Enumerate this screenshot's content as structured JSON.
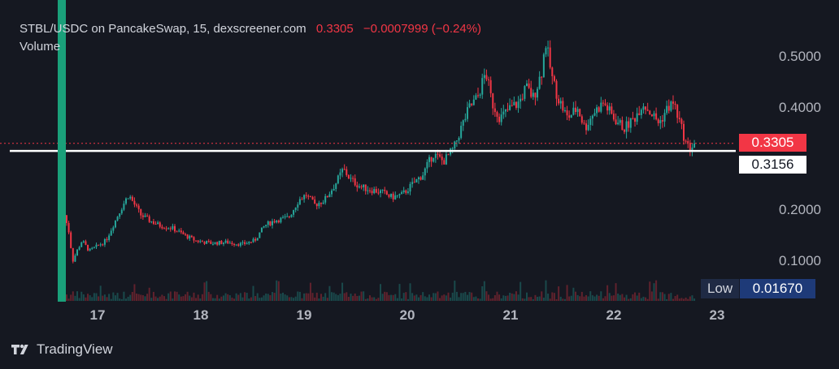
{
  "header": {
    "pair_text": "STBL/USDC on PancakeSwap, 15, dexscreener.com",
    "last_price": "0.3305",
    "change": "−0.0007999 (−0.24%)",
    "volume_label": "Volume"
  },
  "price_tags": {
    "last": "0.3305",
    "line": "0.3156"
  },
  "low_tag": {
    "label": "Low",
    "value": "0.01670"
  },
  "brand": {
    "name": "TradingView"
  },
  "colors": {
    "up": "#26a69a",
    "down": "#f23645",
    "background": "#151821",
    "marker": "#1aa07a"
  },
  "chart_data": {
    "type": "candlestick",
    "y_ticks": [
      "0.5000",
      "0.4000",
      "0.2000",
      "0.1000"
    ],
    "y_tick_values": [
      0.5,
      0.4,
      0.2,
      0.1
    ],
    "ylim": [
      0.05,
      0.53
    ],
    "x_ticks": [
      "17",
      "18",
      "19",
      "20",
      "21",
      "22",
      "23"
    ],
    "x_tick_values": [
      17,
      18,
      19,
      20,
      21,
      22,
      23
    ],
    "xlim": [
      16.6,
      23.2
    ],
    "last_price_line": 0.3305,
    "horizontal_line": 0.3156,
    "series": [
      {
        "name": "price",
        "points": [
          [
            16.68,
            0.19
          ],
          [
            16.72,
            0.16
          ],
          [
            16.76,
            0.1
          ],
          [
            16.8,
            0.12
          ],
          [
            16.85,
            0.14
          ],
          [
            16.92,
            0.12
          ],
          [
            17.0,
            0.13
          ],
          [
            17.08,
            0.14
          ],
          [
            17.15,
            0.17
          ],
          [
            17.22,
            0.2
          ],
          [
            17.3,
            0.23
          ],
          [
            17.36,
            0.21
          ],
          [
            17.42,
            0.19
          ],
          [
            17.5,
            0.18
          ],
          [
            17.6,
            0.17
          ],
          [
            17.72,
            0.165
          ],
          [
            17.85,
            0.15
          ],
          [
            17.95,
            0.14
          ],
          [
            18.1,
            0.135
          ],
          [
            18.25,
            0.137
          ],
          [
            18.4,
            0.133
          ],
          [
            18.52,
            0.14
          ],
          [
            18.62,
            0.17
          ],
          [
            18.72,
            0.18
          ],
          [
            18.85,
            0.185
          ],
          [
            18.95,
            0.22
          ],
          [
            19.02,
            0.23
          ],
          [
            19.1,
            0.21
          ],
          [
            19.2,
            0.22
          ],
          [
            19.3,
            0.25
          ],
          [
            19.38,
            0.28
          ],
          [
            19.45,
            0.26
          ],
          [
            19.55,
            0.245
          ],
          [
            19.65,
            0.24
          ],
          [
            19.75,
            0.235
          ],
          [
            19.85,
            0.225
          ],
          [
            19.95,
            0.23
          ],
          [
            20.05,
            0.25
          ],
          [
            20.15,
            0.27
          ],
          [
            20.25,
            0.31
          ],
          [
            20.35,
            0.295
          ],
          [
            20.45,
            0.32
          ],
          [
            20.52,
            0.36
          ],
          [
            20.6,
            0.4
          ],
          [
            20.68,
            0.42
          ],
          [
            20.76,
            0.47
          ],
          [
            20.82,
            0.41
          ],
          [
            20.9,
            0.38
          ],
          [
            21.0,
            0.4
          ],
          [
            21.08,
            0.41
          ],
          [
            21.15,
            0.44
          ],
          [
            21.22,
            0.42
          ],
          [
            21.3,
            0.47
          ],
          [
            21.34,
            0.53
          ],
          [
            21.4,
            0.46
          ],
          [
            21.46,
            0.42
          ],
          [
            21.55,
            0.38
          ],
          [
            21.65,
            0.4
          ],
          [
            21.72,
            0.36
          ],
          [
            21.8,
            0.39
          ],
          [
            21.9,
            0.41
          ],
          [
            22.0,
            0.38
          ],
          [
            22.1,
            0.36
          ],
          [
            22.2,
            0.38
          ],
          [
            22.28,
            0.41
          ],
          [
            22.36,
            0.39
          ],
          [
            22.44,
            0.37
          ],
          [
            22.52,
            0.4
          ],
          [
            22.58,
            0.41
          ],
          [
            22.64,
            0.37
          ],
          [
            22.7,
            0.33
          ],
          [
            22.74,
            0.32
          ],
          [
            22.78,
            0.3305
          ]
        ]
      }
    ]
  }
}
